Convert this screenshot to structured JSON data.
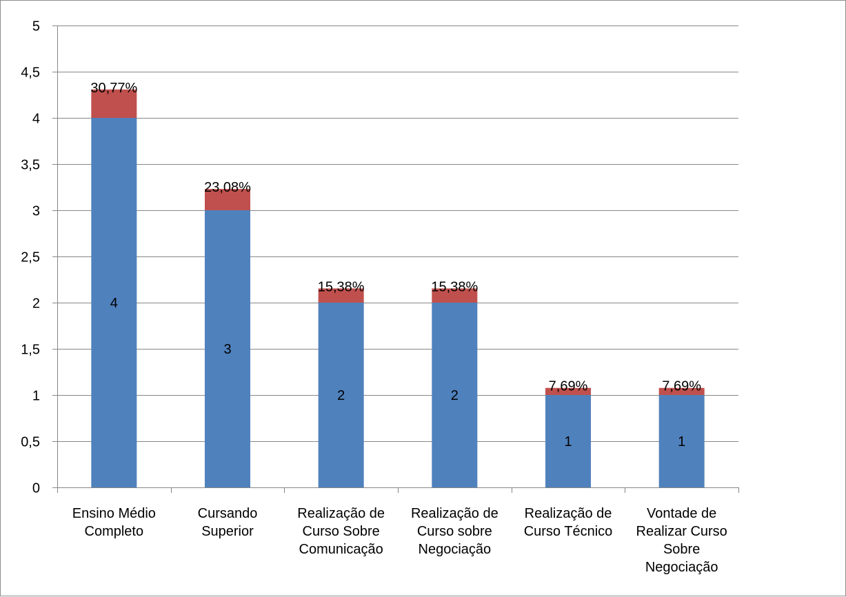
{
  "chart_data": {
    "type": "bar",
    "stacked": true,
    "title": "",
    "xlabel": "",
    "ylabel": "",
    "ylim": [
      0,
      5
    ],
    "y_ticks": [
      "0",
      "0,5",
      "1",
      "1,5",
      "2",
      "2,5",
      "3",
      "3,5",
      "4",
      "4,5",
      "5"
    ],
    "grid": true,
    "legend": "none",
    "categories": [
      [
        "Ensino Médio",
        "Completo"
      ],
      [
        "Cursando",
        "Superior"
      ],
      [
        "Realização de",
        "Curso Sobre",
        "Comunicação"
      ],
      [
        "Realização de",
        "Curso sobre",
        "Negociação"
      ],
      [
        "Realização de",
        "Curso Técnico"
      ],
      [
        "Vontade de",
        "Realizar Curso",
        "Sobre",
        "Negociação"
      ]
    ],
    "series": [
      {
        "values": [
          4,
          3,
          2,
          2,
          1,
          1
        ],
        "data_labels": [
          "4",
          "3",
          "2",
          "2",
          "1",
          "1"
        ],
        "color": "#4f81bd"
      },
      {
        "values": [
          0.3077,
          0.2308,
          0.1538,
          0.1538,
          0.0769,
          0.0769
        ],
        "data_labels": [
          "30,77%",
          "23,08%",
          "15,38%",
          "15,38%",
          "7,69%",
          "7,69%"
        ],
        "color": "#c0504d"
      }
    ]
  }
}
